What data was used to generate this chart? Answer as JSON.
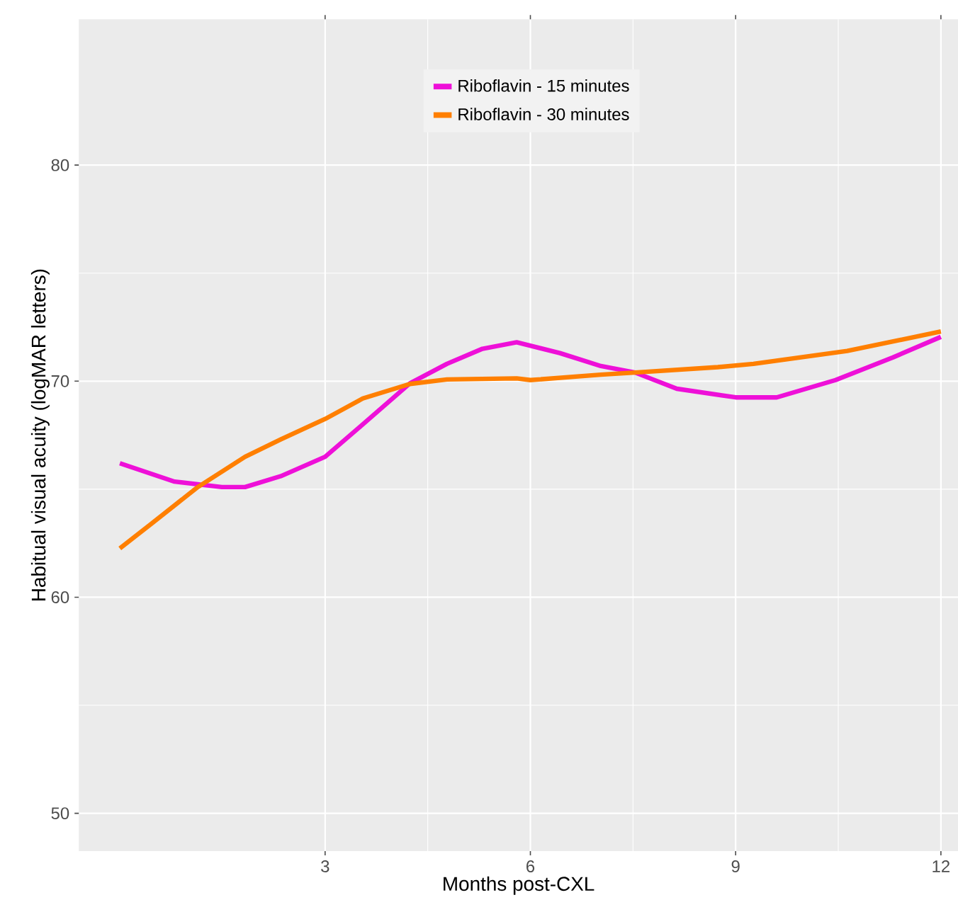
{
  "chart_data": {
    "type": "line",
    "xlabel": "Months post-CXL",
    "ylabel": "Habitual visual acuity (logMAR letters)",
    "xlim": [
      -0.6,
      12.25
    ],
    "ylim": [
      48.25,
      86.75
    ],
    "xticks": [
      3,
      6,
      9,
      12
    ],
    "yticks": [
      50,
      60,
      70,
      80
    ],
    "grid": true,
    "legend": "top",
    "marker": "none",
    "line_style": "solid",
    "series": [
      {
        "name": "Riboflavin - 15 minutes",
        "color": "#ee10d8",
        "x": [
          0,
          0.8,
          1.49,
          1.83,
          2.35,
          3,
          3.55,
          4.24,
          4.78,
          5.3,
          5.8,
          6.43,
          7.03,
          7.53,
          8.14,
          9,
          9.6,
          10.46,
          11.3,
          12
        ],
        "values": [
          66.2,
          65.35,
          65.1,
          65.1,
          65.6,
          66.5,
          68,
          69.9,
          70.8,
          71.5,
          71.8,
          71.3,
          70.7,
          70.4,
          69.65,
          69.25,
          69.25,
          70.05,
          71.1,
          72.05
        ]
      },
      {
        "name": "Riboflavin - 30 minutes",
        "color": "#ff7f00",
        "x": [
          0,
          0.46,
          1.14,
          1.83,
          2.35,
          3,
          3.55,
          4.24,
          4.78,
          5.8,
          6,
          7.03,
          7.53,
          8.74,
          9.26,
          10.63,
          12
        ],
        "values": [
          62.26,
          63.4,
          65.1,
          66.5,
          67.3,
          68.25,
          69.2,
          69.87,
          70.08,
          70.13,
          70.05,
          70.3,
          70.4,
          70.65,
          70.8,
          71.4,
          72.3
        ]
      }
    ]
  }
}
